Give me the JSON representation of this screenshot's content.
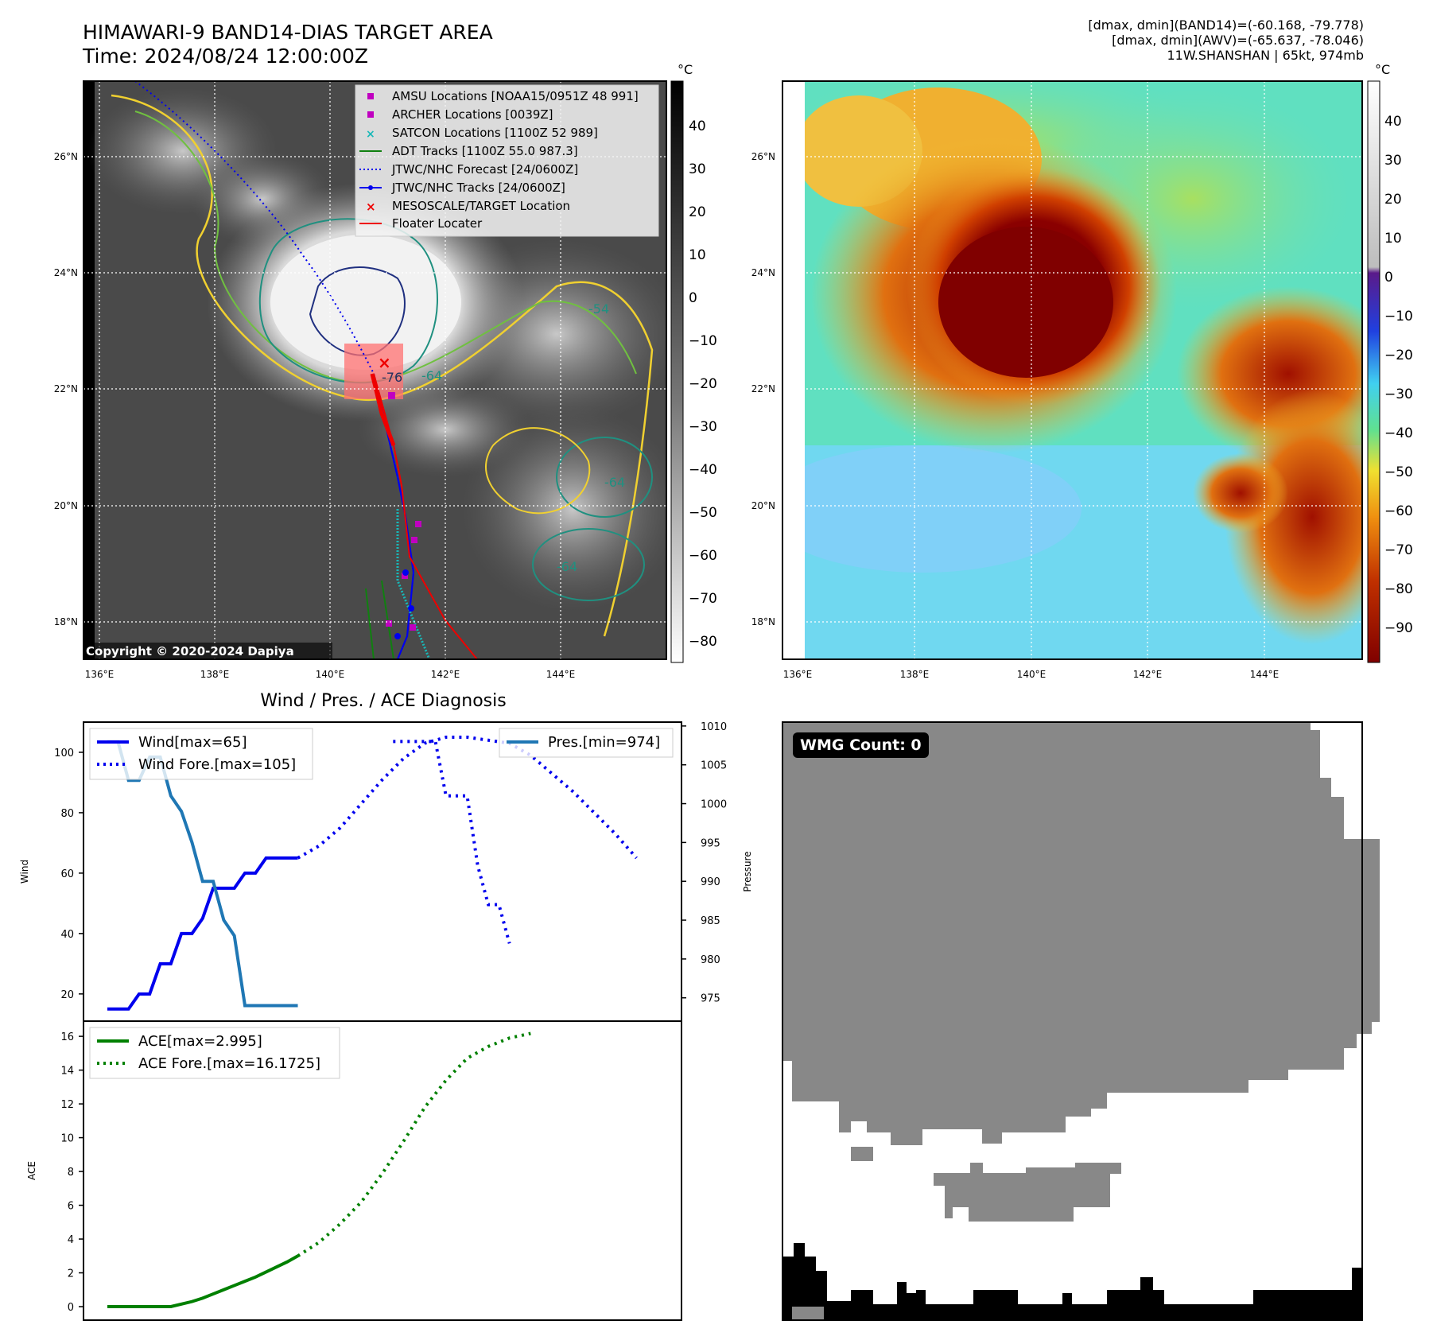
{
  "header": {
    "title_line1": "HIMAWARI-9 BAND14-DIAS TARGET AREA",
    "title_line2": "Time: 2024/08/24 12:00:00Z",
    "info_line1": "[dmax, dmin](BAND14)=(-60.168, -79.778)",
    "info_line2": "[dmax, dmin](AWV)=(-65.637, -78.046)",
    "info_line3": "11W.SHANSHAN | 65kt, 974mb"
  },
  "ir_panel": {
    "copyright": "Copyright © 2020-2024 Dapiya",
    "colorbar_unit": "°C",
    "colorbar_ticks": [
      "40",
      "30",
      "20",
      "10",
      "0",
      "−10",
      "−20",
      "−30",
      "−40",
      "−50",
      "−60",
      "−70",
      "−80"
    ],
    "lon_ticks": [
      "136°E",
      "138°E",
      "140°E",
      "142°E",
      "144°E"
    ],
    "lat_ticks": [
      "26°N",
      "24°N",
      "22°N",
      "20°N",
      "18°N"
    ],
    "contour_labels": [
      "-76",
      "-64",
      "-64",
      "-64",
      "-54"
    ],
    "legend": [
      {
        "label": "AMSU Locations [NOAA15/0951Z 48 991]",
        "marker": "square",
        "color": "#c000c0"
      },
      {
        "label": "ARCHER Locations [0039Z]",
        "marker": "square",
        "color": "#c000c0"
      },
      {
        "label": "SATCON Locations [1100Z 52 989]",
        "marker": "x",
        "color": "#18b8b8"
      },
      {
        "label": "ADT Tracks [1100Z 55.0 987.3]",
        "marker": "line",
        "color": "#108010"
      },
      {
        "label": "JTWC/NHC Forecast [24/0600Z]",
        "marker": "dotted",
        "color": "#0000ee"
      },
      {
        "label": "JTWC/NHC Tracks [24/0600Z]",
        "marker": "line-dot",
        "color": "#0000ee"
      },
      {
        "label": "MESOSCALE/TARGET Location",
        "marker": "x",
        "color": "#ee0000"
      },
      {
        "label": "Floater Locater",
        "marker": "line",
        "color": "#ee0000"
      }
    ]
  },
  "enhanced_panel": {
    "colorbar_unit": "°C",
    "colorbar_ticks": [
      "40",
      "30",
      "20",
      "10",
      "0",
      "−10",
      "−20",
      "−30",
      "−40",
      "−50",
      "−60",
      "−70",
      "−80",
      "−90"
    ],
    "lon_ticks": [
      "136°E",
      "138°E",
      "140°E",
      "142°E",
      "144°E"
    ],
    "lat_ticks": [
      "26°N",
      "24°N",
      "22°N",
      "20°N",
      "18°N"
    ]
  },
  "wmg_panel": {
    "badge": "WMG Count: 0"
  },
  "chart_data": [
    {
      "type": "line",
      "title": "Wind / Pres. / ACE Diagnosis",
      "ylabel": "Wind",
      "y2label": "Pressure",
      "ylim": [
        11,
        110
      ],
      "y2lim": [
        972,
        1010.5
      ],
      "yticks": [
        "20",
        "40",
        "60",
        "80",
        "100"
      ],
      "y2ticks": [
        "975",
        "980",
        "985",
        "990",
        "995",
        "1000",
        "1005",
        "1010"
      ],
      "series": [
        {
          "name": "Wind[max=65]",
          "color": "#0000ee",
          "style": "solid",
          "axis": "left",
          "x": [
            0,
            1,
            2,
            3,
            4,
            5,
            6,
            7,
            8,
            9,
            10,
            11,
            12,
            13,
            14,
            15,
            16,
            17,
            18
          ],
          "values": [
            15,
            15,
            15,
            20,
            20,
            30,
            30,
            40,
            40,
            45,
            55,
            55,
            55,
            60,
            60,
            65,
            65,
            65,
            65
          ]
        },
        {
          "name": "Wind Fore.[max=105]",
          "color": "#0000ee",
          "style": "dotted",
          "axis": "left",
          "x": [
            18,
            20,
            22,
            24,
            26,
            28,
            30,
            32,
            34,
            36,
            38,
            40,
            42,
            44,
            46,
            48,
            50
          ],
          "values": [
            65,
            69,
            75,
            83,
            91,
            98,
            103,
            105,
            105,
            104,
            103,
            99,
            93,
            87,
            80,
            73,
            65
          ]
        },
        {
          "name": "Pres.[min=974]",
          "color": "#1f77b4",
          "style": "solid",
          "axis": "right",
          "x": [
            0,
            1,
            2,
            3,
            4,
            5,
            6,
            7,
            8,
            9,
            10,
            11,
            12,
            13,
            14,
            15,
            16,
            17,
            18
          ],
          "values": [
            1008,
            1008,
            1003,
            1003,
            1006,
            1006,
            1001,
            999,
            995,
            990,
            990,
            985,
            983,
            974,
            974,
            974,
            974,
            974,
            974
          ]
        },
        {
          "name": "",
          "color": "#0000ee",
          "style": "dotted",
          "axis": "right",
          "x": [
            27,
            28,
            29,
            30,
            31,
            32,
            33,
            34,
            35,
            36,
            37,
            38
          ],
          "values": [
            1008,
            1008,
            1008,
            1008,
            1008,
            1001,
            1001,
            1001,
            992,
            987,
            987,
            982
          ]
        }
      ],
      "legend_left": "top-left",
      "legend_right": "top-right"
    },
    {
      "type": "line",
      "ylabel": "ACE",
      "ylim": [
        -0.8,
        16.9
      ],
      "yticks": [
        "0",
        "2",
        "4",
        "6",
        "8",
        "10",
        "12",
        "14",
        "16"
      ],
      "series": [
        {
          "name": "ACE[max=2.995]",
          "color": "#008000",
          "style": "solid",
          "x": [
            0,
            1,
            2,
            3,
            4,
            5,
            6,
            7,
            8,
            9,
            10,
            11,
            12,
            13,
            14,
            15,
            16,
            17,
            18
          ],
          "values": [
            0,
            0,
            0,
            0,
            0,
            0,
            0,
            0.15,
            0.3,
            0.5,
            0.75,
            1.0,
            1.25,
            1.5,
            1.75,
            2.05,
            2.35,
            2.65,
            3.0
          ]
        },
        {
          "name": "ACE Fore.[max=16.1725]",
          "color": "#008000",
          "style": "dotted",
          "x": [
            18,
            20,
            22,
            24,
            26,
            28,
            30,
            32,
            34,
            36,
            38,
            40
          ],
          "values": [
            3.0,
            3.8,
            4.9,
            6.2,
            7.9,
            9.8,
            11.8,
            13.4,
            14.7,
            15.4,
            15.9,
            16.17
          ]
        }
      ],
      "legend": "top-left"
    }
  ]
}
